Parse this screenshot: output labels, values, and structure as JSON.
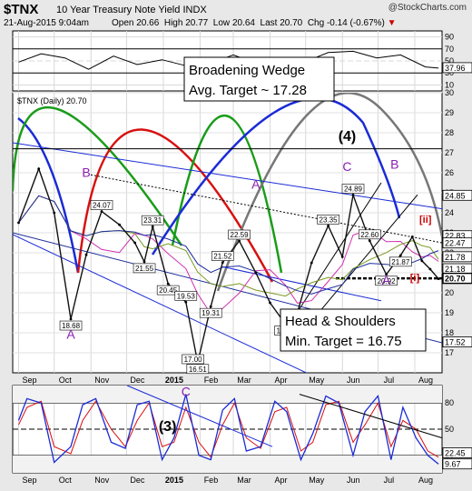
{
  "header": {
    "ticker": "$TNX",
    "title": "10 Year Treasury Note Yield",
    "exchange": "INDX",
    "brand": "@StockCharts.com",
    "datetime": "21-Aug-2015 9:04am",
    "open_label": "Open",
    "open": "20.66",
    "high_label": "High",
    "high": "20.77",
    "low_label": "Low",
    "low": "20.64",
    "last_label": "Last",
    "last": "20.70",
    "chg_label": "Chg",
    "chg": "-0.14 (-0.67%)"
  },
  "colors": {
    "price": "#111111",
    "down_arrow": "#cc0000",
    "rsi_line": "#000000",
    "ma_blue": "#1e2e9c"
  },
  "chart_data": [
    {
      "type": "line",
      "panel": "upper indicator (RSI-type)",
      "y_ticks": [
        "90",
        "70",
        "50",
        "30",
        "10"
      ],
      "last_value_label": "37.96",
      "x": [
        "2014-09-01",
        "2014-09-20",
        "2014-10-10",
        "2014-10-30",
        "2014-11-20",
        "2014-12-10",
        "2014-12-31",
        "2015-01-20",
        "2015-02-10",
        "2015-03-01",
        "2015-03-20",
        "2015-04-10",
        "2015-04-30",
        "2015-05-20",
        "2015-06-10",
        "2015-06-30",
        "2015-07-20",
        "2015-08-10",
        "2015-08-21"
      ],
      "values": [
        48,
        62,
        55,
        36,
        58,
        44,
        52,
        42,
        46,
        60,
        46,
        52,
        48,
        64,
        66,
        55,
        60,
        40,
        38
      ],
      "ylim": [
        10,
        90
      ]
    },
    {
      "type": "line",
      "panel": "main price",
      "series_label": "$TNX (Daily) 20.70",
      "ylim": [
        16,
        30
      ],
      "y_ticks": [
        "30",
        "29",
        "28",
        "27",
        "26",
        "25",
        "24",
        "23",
        "22",
        "21",
        "20",
        "19",
        "18",
        "17"
      ],
      "x_ticks": [
        "Sep",
        "Oct",
        "Nov",
        "Dec",
        "2015",
        "Feb",
        "Mar",
        "Apr",
        "May",
        "Jun",
        "Jul",
        "Aug"
      ],
      "x": [
        "2014-09-01",
        "2014-09-18",
        "2014-10-01",
        "2014-10-15",
        "2014-10-28",
        "2014-11-10",
        "2014-11-25",
        "2014-12-08",
        "2014-12-16",
        "2014-12-23",
        "2015-01-05",
        "2015-01-20",
        "2015-01-30",
        "2015-02-10",
        "2015-02-20",
        "2015-03-06",
        "2015-03-20",
        "2015-04-01",
        "2015-04-14",
        "2015-04-24",
        "2015-05-06",
        "2015-05-20",
        "2015-06-01",
        "2015-06-10",
        "2015-06-24",
        "2015-07-08",
        "2015-07-20",
        "2015-07-30",
        "2015-08-07",
        "2015-08-14",
        "2015-08-21"
      ],
      "values": [
        23.5,
        26.2,
        24.0,
        18.68,
        21.9,
        24.07,
        23.4,
        22.5,
        21.55,
        23.31,
        20.45,
        19.53,
        16.51,
        19.31,
        21.52,
        22.59,
        21.0,
        19.5,
        18.43,
        19.0,
        21.5,
        23.35,
        21.8,
        24.89,
        22.6,
        20.92,
        21.87,
        22.8,
        21.6,
        21.18,
        20.7
      ],
      "price_labels": [
        "24.07",
        "23.31",
        "21.55",
        "20.45",
        "22.59",
        "21.52",
        "19.53",
        "19.31",
        "17.00",
        "16.51",
        "18.68",
        "18.43",
        "23.35",
        "24.89",
        "22.60",
        "21.87",
        "20.92"
      ],
      "right_axis_labels": [
        "24.85",
        "22.83",
        "22.47",
        "21.78",
        "21.18",
        "20.70",
        "17.52"
      ],
      "wave_labels": [
        "B",
        "A",
        "A",
        "B",
        "C",
        "B",
        "A",
        "(4)",
        "[ii]",
        "[i]"
      ],
      "annotations": [
        {
          "line1": "Broadening Wedge",
          "line2": "Avg. Target ~ 17.28"
        },
        {
          "line1": "Head & Shoulders",
          "line2": "Min. Target = 16.75"
        }
      ]
    },
    {
      "type": "line",
      "panel": "lower oscillator",
      "y_ticks": [
        "80",
        "50",
        "20"
      ],
      "last_value_labels": [
        "22.45",
        "9.67"
      ],
      "wave_labels": [
        "C",
        "(3)"
      ],
      "x": [
        "2014-09-01",
        "2014-09-08",
        "2014-09-20",
        "2014-10-01",
        "2014-10-15",
        "2014-10-25",
        "2014-11-05",
        "2014-11-18",
        "2014-11-30",
        "2014-12-10",
        "2014-12-20",
        "2014-12-31",
        "2015-01-10",
        "2015-01-20",
        "2015-01-31",
        "2015-02-10",
        "2015-02-20",
        "2015-03-02",
        "2015-03-12",
        "2015-03-24",
        "2015-04-05",
        "2015-04-15",
        "2015-04-27",
        "2015-05-07",
        "2015-05-18",
        "2015-05-29",
        "2015-06-10",
        "2015-06-20",
        "2015-07-01",
        "2015-07-12",
        "2015-07-22",
        "2015-08-02",
        "2015-08-12",
        "2015-08-21"
      ],
      "values": [
        60,
        85,
        80,
        12,
        30,
        78,
        85,
        35,
        28,
        78,
        82,
        15,
        40,
        90,
        20,
        15,
        72,
        85,
        25,
        30,
        82,
        70,
        15,
        45,
        88,
        80,
        20,
        70,
        88,
        15,
        75,
        40,
        20,
        10
      ],
      "signal": [
        55,
        75,
        82,
        30,
        22,
        60,
        82,
        50,
        30,
        60,
        80,
        30,
        35,
        75,
        35,
        18,
        55,
        80,
        40,
        28,
        70,
        75,
        25,
        35,
        78,
        82,
        35,
        55,
        80,
        30,
        60,
        50,
        25,
        18
      ],
      "ylim": [
        0,
        100
      ]
    }
  ]
}
